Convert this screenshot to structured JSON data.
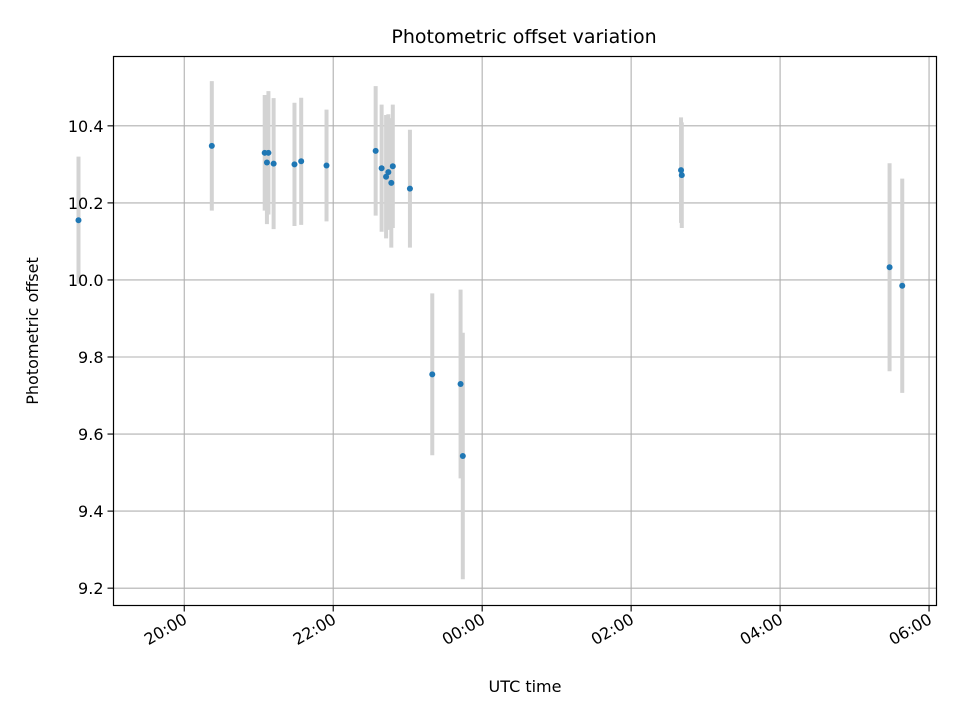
{
  "chart_data": {
    "type": "scatter",
    "title": "Photometric offset variation",
    "xlabel": "UTC time",
    "ylabel": "Photometric offset",
    "x_unit": "hours since 00:00 UTC",
    "xlim": [
      -4.95,
      6.1
    ],
    "ylim": [
      9.155,
      10.58
    ],
    "grid": true,
    "x_ticks": [
      {
        "value": -4,
        "label": "20:00"
      },
      {
        "value": -2,
        "label": "22:00"
      },
      {
        "value": 0,
        "label": "00:00"
      },
      {
        "value": 2,
        "label": "02:00"
      },
      {
        "value": 4,
        "label": "04:00"
      },
      {
        "value": 6,
        "label": "06:00"
      }
    ],
    "y_ticks": [
      9.2,
      9.4,
      9.6,
      9.8,
      10.0,
      10.2,
      10.4
    ],
    "y_tick_labels": [
      "9.2",
      "9.4",
      "9.6",
      "9.8",
      "10.0",
      "10.2",
      "10.4"
    ],
    "colors": {
      "point": "#1f77b4",
      "errorbar": "#d3d3d3",
      "grid": "#b0b0b0"
    },
    "points": [
      {
        "x": -5.42,
        "y": 10.155,
        "err": 0.165
      },
      {
        "x": -3.63,
        "y": 10.348,
        "err": 0.168
      },
      {
        "x": -2.92,
        "y": 10.33,
        "err": 0.15
      },
      {
        "x": -2.89,
        "y": 10.305,
        "err": 0.16
      },
      {
        "x": -2.87,
        "y": 10.33,
        "err": 0.16
      },
      {
        "x": -2.8,
        "y": 10.302,
        "err": 0.17
      },
      {
        "x": -2.52,
        "y": 10.3,
        "err": 0.16
      },
      {
        "x": -2.43,
        "y": 10.308,
        "err": 0.165
      },
      {
        "x": -2.09,
        "y": 10.297,
        "err": 0.145
      },
      {
        "x": -1.43,
        "y": 10.335,
        "err": 0.168
      },
      {
        "x": -1.35,
        "y": 10.29,
        "err": 0.165
      },
      {
        "x": -1.29,
        "y": 10.268,
        "err": 0.16
      },
      {
        "x": -1.26,
        "y": 10.28,
        "err": 0.15
      },
      {
        "x": -1.22,
        "y": 10.252,
        "err": 0.168
      },
      {
        "x": -1.2,
        "y": 10.295,
        "err": 0.16
      },
      {
        "x": -0.97,
        "y": 10.237,
        "err": 0.153
      },
      {
        "x": -0.67,
        "y": 9.755,
        "err": 0.21
      },
      {
        "x": -0.29,
        "y": 9.73,
        "err": 0.245
      },
      {
        "x": -0.26,
        "y": 9.543,
        "err": 0.32
      },
      {
        "x": 2.67,
        "y": 10.285,
        "err": 0.137
      },
      {
        "x": 2.68,
        "y": 10.272,
        "err": 0.137
      },
      {
        "x": 5.47,
        "y": 10.033,
        "err": 0.27
      },
      {
        "x": 5.64,
        "y": 9.985,
        "err": 0.278
      }
    ]
  }
}
